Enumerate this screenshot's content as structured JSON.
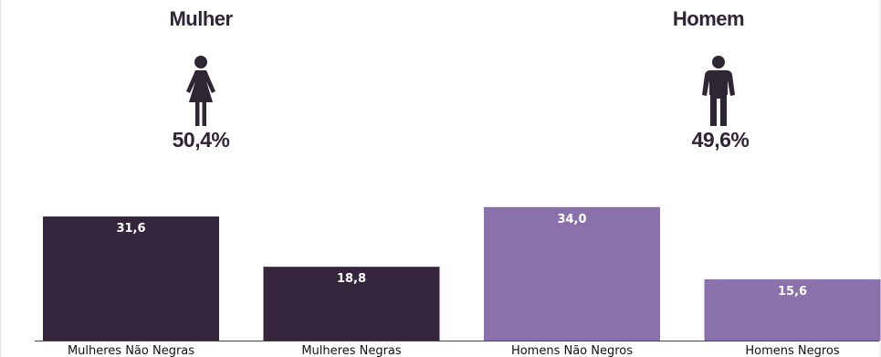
{
  "groups": [
    {
      "title": "Mulher",
      "share": "50,4%",
      "icon": "female-person-icon"
    },
    {
      "title": "Homem",
      "share": "49,6%",
      "icon": "male-person-icon"
    }
  ],
  "colors": {
    "dark": "#36263d",
    "light": "#8a71ab",
    "icon": "#2e2535",
    "axis": "#444444"
  },
  "chart_data": {
    "type": "bar",
    "categories": [
      "Mulheres Não Negras",
      "Mulheres Negras",
      "Homens Não Negros",
      "Homens Negros"
    ],
    "values": [
      31.6,
      18.8,
      34.0,
      15.6
    ],
    "value_labels": [
      "31,6",
      "18,8",
      "34,0",
      "15,6"
    ],
    "bar_colors": [
      "#36263d",
      "#36263d",
      "#8a71ab",
      "#8a71ab"
    ],
    "title": "",
    "xlabel": "",
    "ylabel": "",
    "ylim": [
      0,
      40
    ],
    "grid": false,
    "legend": "none"
  }
}
